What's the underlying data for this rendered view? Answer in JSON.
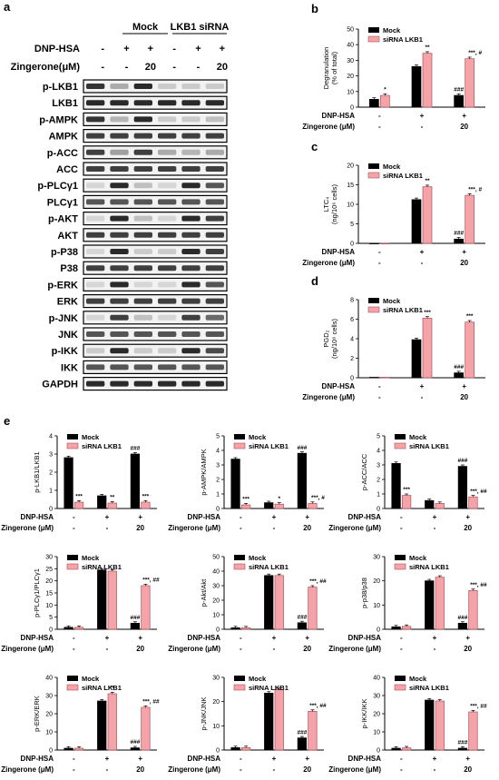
{
  "figure": {
    "panels": {
      "a": "a",
      "b": "b",
      "c": "c",
      "d": "d",
      "e": "e"
    },
    "colors": {
      "mock": "#000000",
      "sirna": "#f4a3a8",
      "sirna_edge": "#b05059"
    },
    "legend": {
      "mock": "Mock",
      "sirna": "siRNA LKB1"
    },
    "conditions": {
      "dnp_label": "DNP-HSA",
      "zing_label": "Zingerone (μM)",
      "dnp": [
        "-",
        "+",
        "+"
      ],
      "zing": [
        "-",
        "-",
        "20"
      ]
    },
    "blot": {
      "header": {
        "mock": "Mock",
        "sirna": "LKB1 siRNA"
      },
      "dnp_label": "DNP-HSA",
      "zing_label": "Zingerone(μM)",
      "dnp_signs": [
        "-",
        "+",
        "+",
        "-",
        "+",
        "+"
      ],
      "zing_signs": [
        "-",
        "-",
        "20",
        "-",
        "-",
        "20"
      ],
      "rows": [
        "p-LKB1",
        "LKB1",
        "p-AMPK",
        "AMPK",
        "p-ACC",
        "ACC",
        "p-PLCγ1",
        "PLCγ1",
        "p-AKT",
        "AKT",
        "p-P38",
        "P38",
        "p-ERK",
        "ERK",
        "p-JNK",
        "JNK",
        "p-IKK",
        "IKK",
        "GAPDH"
      ]
    }
  },
  "chart_data": [
    {
      "id": "b",
      "type": "bar",
      "ylabel": "Degranulation",
      "ylabel2": "(% of total)",
      "ylim": [
        0,
        50
      ],
      "yticks": [
        0,
        10,
        20,
        30,
        40,
        50
      ],
      "series": [
        {
          "name": "Mock",
          "values": [
            5,
            26,
            7.5
          ]
        },
        {
          "name": "siRNA LKB1",
          "values": [
            7.5,
            34.5,
            31
          ]
        }
      ],
      "annotations": {
        "mock": [
          "",
          "",
          "###"
        ],
        "sirna": [
          "*",
          "**",
          "***, #"
        ]
      }
    },
    {
      "id": "c",
      "type": "bar",
      "ylabel": "LTC₄",
      "ylabel2": "(ng/10⁶ cells)",
      "ylim": [
        0,
        20
      ],
      "yticks": [
        0,
        5,
        10,
        15,
        20
      ],
      "series": [
        {
          "name": "Mock",
          "values": [
            0,
            11.2,
            1.1
          ]
        },
        {
          "name": "siRNA LKB1",
          "values": [
            0,
            14.5,
            12.3
          ]
        }
      ],
      "annotations": {
        "mock": [
          "",
          "",
          "###"
        ],
        "sirna": [
          "",
          "**",
          "***, #"
        ]
      }
    },
    {
      "id": "d",
      "type": "bar",
      "ylabel": "PGD₂",
      "ylabel2": "(ng/10⁶ cells)",
      "ylim": [
        0,
        8
      ],
      "yticks": [
        0,
        2,
        4,
        6,
        8
      ],
      "series": [
        {
          "name": "Mock",
          "values": [
            0.05,
            3.9,
            0.5
          ]
        },
        {
          "name": "siRNA LKB1",
          "values": [
            0.05,
            6.1,
            5.7
          ]
        }
      ],
      "annotations": {
        "mock": [
          "",
          "",
          "###"
        ],
        "sirna": [
          "",
          "***",
          "***"
        ]
      }
    },
    {
      "id": "e1",
      "type": "bar",
      "ylabel": "p-LKB1/LKB1",
      "ylim": [
        0,
        4
      ],
      "yticks": [
        0,
        1,
        2,
        3,
        4
      ],
      "series": [
        {
          "name": "Mock",
          "values": [
            2.8,
            0.7,
            3.0
          ]
        },
        {
          "name": "siRNA LKB1",
          "values": [
            0.35,
            0.3,
            0.35
          ]
        }
      ],
      "annotations": {
        "mock": [
          "",
          "",
          "###"
        ],
        "sirna": [
          "***",
          "**",
          "***"
        ]
      }
    },
    {
      "id": "e2",
      "type": "bar",
      "ylabel": "p-AMPK/AMPK",
      "ylim": [
        0,
        5
      ],
      "yticks": [
        0,
        1,
        2,
        3,
        4,
        5
      ],
      "series": [
        {
          "name": "Mock",
          "values": [
            3.4,
            0.4,
            3.8
          ]
        },
        {
          "name": "siRNA LKB1",
          "values": [
            0.25,
            0.3,
            0.35
          ]
        }
      ],
      "annotations": {
        "mock": [
          "",
          "",
          "###"
        ],
        "sirna": [
          "***",
          "*",
          "***, #"
        ]
      }
    },
    {
      "id": "e3",
      "type": "bar",
      "ylabel": "p-ACC/ACC",
      "ylim": [
        0,
        5
      ],
      "yticks": [
        0,
        1,
        2,
        3,
        4,
        5
      ],
      "series": [
        {
          "name": "Mock",
          "values": [
            3.1,
            0.55,
            2.9
          ]
        },
        {
          "name": "siRNA LKB1",
          "values": [
            0.9,
            0.35,
            0.8
          ]
        }
      ],
      "annotations": {
        "mock": [
          "",
          "",
          "###"
        ],
        "sirna": [
          "***",
          "",
          "***, ##"
        ]
      }
    },
    {
      "id": "e4",
      "type": "bar",
      "ylabel": "p-PLCγ1/PLCγ1",
      "ylim": [
        0,
        30
      ],
      "yticks": [
        0,
        5,
        10,
        15,
        20,
        25,
        30
      ],
      "series": [
        {
          "name": "Mock",
          "values": [
            0.8,
            24.5,
            2.5
          ]
        },
        {
          "name": "siRNA LKB1",
          "values": [
            0.8,
            24,
            18
          ]
        }
      ],
      "annotations": {
        "mock": [
          "",
          "",
          "###"
        ],
        "sirna": [
          "",
          "",
          "***, ##"
        ]
      }
    },
    {
      "id": "e5",
      "type": "bar",
      "ylabel": "p-Akt/Akt",
      "ylim": [
        0,
        50
      ],
      "yticks": [
        0,
        10,
        20,
        30,
        40,
        50
      ],
      "series": [
        {
          "name": "Mock",
          "values": [
            1,
            37,
            4.5
          ]
        },
        {
          "name": "siRNA LKB1",
          "values": [
            1,
            37,
            29
          ]
        }
      ],
      "annotations": {
        "mock": [
          "",
          "",
          "###"
        ],
        "sirna": [
          "",
          "",
          "***, ##"
        ]
      }
    },
    {
      "id": "e6",
      "type": "bar",
      "ylabel": "p-p38/p38",
      "ylim": [
        0,
        30
      ],
      "yticks": [
        0,
        10,
        20,
        30
      ],
      "series": [
        {
          "name": "Mock",
          "values": [
            1,
            20,
            2.5
          ]
        },
        {
          "name": "siRNA LKB1",
          "values": [
            1.2,
            21.5,
            16
          ]
        }
      ],
      "annotations": {
        "mock": [
          "",
          "",
          "###"
        ],
        "sirna": [
          "",
          "",
          "***, ##"
        ]
      }
    },
    {
      "id": "e7",
      "type": "bar",
      "ylabel": "p-ERK/ERK",
      "ylim": [
        0,
        40
      ],
      "yticks": [
        0,
        10,
        20,
        30,
        40
      ],
      "series": [
        {
          "name": "Mock",
          "values": [
            1,
            27,
            1.2
          ]
        },
        {
          "name": "siRNA LKB1",
          "values": [
            1,
            31,
            23.5
          ]
        }
      ],
      "annotations": {
        "mock": [
          "",
          "",
          "###"
        ],
        "sirna": [
          "",
          "**",
          "***, ##"
        ]
      }
    },
    {
      "id": "e8",
      "type": "bar",
      "ylabel": "p-JNK/JNK",
      "ylim": [
        0,
        30
      ],
      "yticks": [
        0,
        10,
        20,
        30
      ],
      "series": [
        {
          "name": "Mock",
          "values": [
            1,
            23.5,
            5
          ]
        },
        {
          "name": "siRNA LKB1",
          "values": [
            1,
            25,
            16
          ]
        }
      ],
      "annotations": {
        "mock": [
          "",
          "",
          "###"
        ],
        "sirna": [
          "",
          "",
          "***, ##"
        ]
      }
    },
    {
      "id": "e9",
      "type": "bar",
      "ylabel": "p-IKK/IKK",
      "ylim": [
        0,
        40
      ],
      "yticks": [
        0,
        10,
        20,
        30,
        40
      ],
      "series": [
        {
          "name": "Mock",
          "values": [
            1,
            27.5,
            1
          ]
        },
        {
          "name": "siRNA LKB1",
          "values": [
            1.2,
            27,
            21
          ]
        }
      ],
      "annotations": {
        "mock": [
          "",
          "",
          "###"
        ],
        "sirna": [
          "",
          "",
          "***, ##"
        ]
      }
    }
  ]
}
